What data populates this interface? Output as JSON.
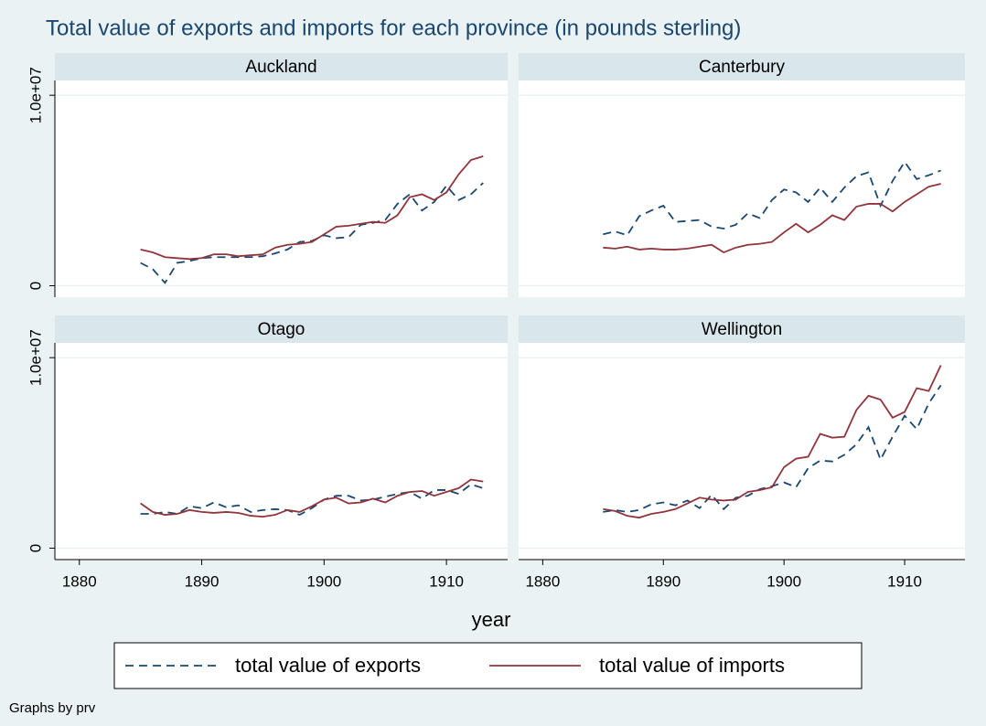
{
  "chart_data": {
    "type": "line",
    "title": "Total value of exports and imports for each province (in pounds sterling)",
    "xlabel": "year",
    "note": "Graphs by prv",
    "x": [
      1885,
      1886,
      1887,
      1888,
      1889,
      1890,
      1891,
      1892,
      1893,
      1894,
      1895,
      1896,
      1897,
      1898,
      1899,
      1900,
      1901,
      1902,
      1903,
      1904,
      1905,
      1906,
      1907,
      1908,
      1909,
      1910,
      1911,
      1912,
      1913
    ],
    "xlim": [
      1878,
      1915
    ],
    "xticks": [
      1880,
      1890,
      1900,
      1910
    ],
    "ylim": [
      -600000,
      10200000
    ],
    "yticks": [
      0,
      {
        "value": 10000000,
        "label": "1.0e+07"
      }
    ],
    "grid": true,
    "legend": "bottom",
    "series": [
      {
        "name": "total value of exports",
        "color": "#1a476f",
        "dashed": true
      },
      {
        "name": "total value of imports",
        "color": "#90353b",
        "dashed": false
      }
    ],
    "panels": [
      {
        "title": "Auckland",
        "values": [
          [
            1200000,
            870000,
            150000,
            1200000,
            1300000,
            1450000,
            1500000,
            1500000,
            1500000,
            1500000,
            1550000,
            1700000,
            1900000,
            2300000,
            2350000,
            2650000,
            2500000,
            2550000,
            3200000,
            3300000,
            3450000,
            4300000,
            4800000,
            3950000,
            4400000,
            5250000,
            4500000,
            4800000,
            5400000
          ],
          [
            1900000,
            1750000,
            1500000,
            1450000,
            1400000,
            1450000,
            1650000,
            1650000,
            1550000,
            1600000,
            1650000,
            2000000,
            2150000,
            2200000,
            2300000,
            2700000,
            3100000,
            3150000,
            3250000,
            3350000,
            3300000,
            3700000,
            4650000,
            4800000,
            4500000,
            4900000,
            5850000,
            6600000,
            6800000
          ]
        ]
      },
      {
        "title": "Canterbury",
        "values": [
          [
            2700000,
            2850000,
            2650000,
            3650000,
            3950000,
            4200000,
            3350000,
            3400000,
            3450000,
            3100000,
            3000000,
            3200000,
            3800000,
            3550000,
            4500000,
            5050000,
            4900000,
            4400000,
            5150000,
            4400000,
            5150000,
            5750000,
            5950000,
            4200000,
            5500000,
            6500000,
            5600000,
            5800000,
            6050000
          ],
          [
            2000000,
            1950000,
            2050000,
            1900000,
            1950000,
            1900000,
            1900000,
            1950000,
            2050000,
            2150000,
            1750000,
            2000000,
            2150000,
            2200000,
            2300000,
            2800000,
            3250000,
            2800000,
            3200000,
            3700000,
            3450000,
            4150000,
            4300000,
            4300000,
            3900000,
            4400000,
            4800000,
            5200000,
            5350000
          ]
        ]
      },
      {
        "title": "Otago",
        "values": [
          [
            1800000,
            1800000,
            1900000,
            1800000,
            2200000,
            2100000,
            2400000,
            2150000,
            2250000,
            1900000,
            2000000,
            2050000,
            2000000,
            1750000,
            2100000,
            2550000,
            2750000,
            2750000,
            2500000,
            2550000,
            2700000,
            2850000,
            2950000,
            2600000,
            3050000,
            3050000,
            2850000,
            3350000,
            3150000
          ],
          [
            2350000,
            1900000,
            1750000,
            1800000,
            2000000,
            1900000,
            1850000,
            1900000,
            1850000,
            1700000,
            1650000,
            1750000,
            2000000,
            1900000,
            2200000,
            2550000,
            2650000,
            2350000,
            2400000,
            2600000,
            2400000,
            2750000,
            2950000,
            3000000,
            2750000,
            2950000,
            3150000,
            3600000,
            3500000
          ]
        ]
      },
      {
        "title": "Wellington",
        "values": [
          [
            1900000,
            2000000,
            1900000,
            2000000,
            2300000,
            2400000,
            2250000,
            2500000,
            2100000,
            2800000,
            2050000,
            2650000,
            2750000,
            3100000,
            3250000,
            3450000,
            3200000,
            4200000,
            4600000,
            4550000,
            4900000,
            5450000,
            6350000,
            4650000,
            5850000,
            6950000,
            6250000,
            7600000,
            8550000
          ],
          [
            2050000,
            1950000,
            1700000,
            1600000,
            1800000,
            1900000,
            2050000,
            2350000,
            2650000,
            2550000,
            2500000,
            2550000,
            2950000,
            3050000,
            3200000,
            4250000,
            4700000,
            4800000,
            6000000,
            5800000,
            5850000,
            7250000,
            8000000,
            7800000,
            6850000,
            7150000,
            8400000,
            8250000,
            9600000
          ]
        ]
      }
    ]
  }
}
